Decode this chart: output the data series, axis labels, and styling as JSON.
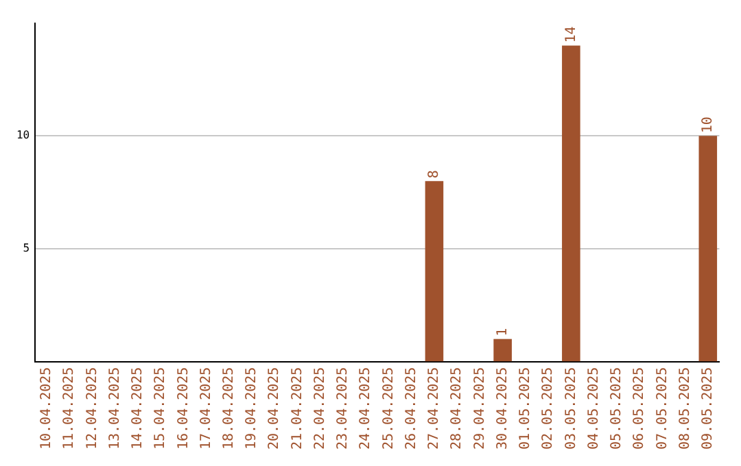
{
  "chart_data": {
    "type": "bar",
    "categories": [
      "10.04.2025",
      "11.04.2025",
      "12.04.2025",
      "13.04.2025",
      "14.04.2025",
      "15.04.2025",
      "16.04.2025",
      "17.04.2025",
      "18.04.2025",
      "19.04.2025",
      "20.04.2025",
      "21.04.2025",
      "22.04.2025",
      "23.04.2025",
      "24.04.2025",
      "25.04.2025",
      "26.04.2025",
      "27.04.2025",
      "28.04.2025",
      "29.04.2025",
      "30.04.2025",
      "01.05.2025",
      "02.05.2025",
      "03.05.2025",
      "04.05.2025",
      "05.05.2025",
      "06.05.2025",
      "07.05.2025",
      "08.05.2025",
      "09.05.2025"
    ],
    "values": [
      0,
      0,
      0,
      0,
      0,
      0,
      0,
      0,
      0,
      0,
      0,
      0,
      0,
      0,
      0,
      0,
      0,
      8,
      0,
      0,
      1,
      0,
      0,
      14,
      0,
      0,
      0,
      0,
      0,
      10
    ],
    "value_labels": [
      null,
      null,
      null,
      null,
      null,
      null,
      null,
      null,
      null,
      null,
      null,
      null,
      null,
      null,
      null,
      null,
      null,
      "8",
      null,
      null,
      "1",
      null,
      null,
      "14",
      null,
      null,
      null,
      null,
      null,
      "10"
    ],
    "color": "#a0522d",
    "ylim": [
      0,
      15
    ],
    "yticks": [
      5,
      10
    ],
    "grid": "y",
    "legend": false
  }
}
